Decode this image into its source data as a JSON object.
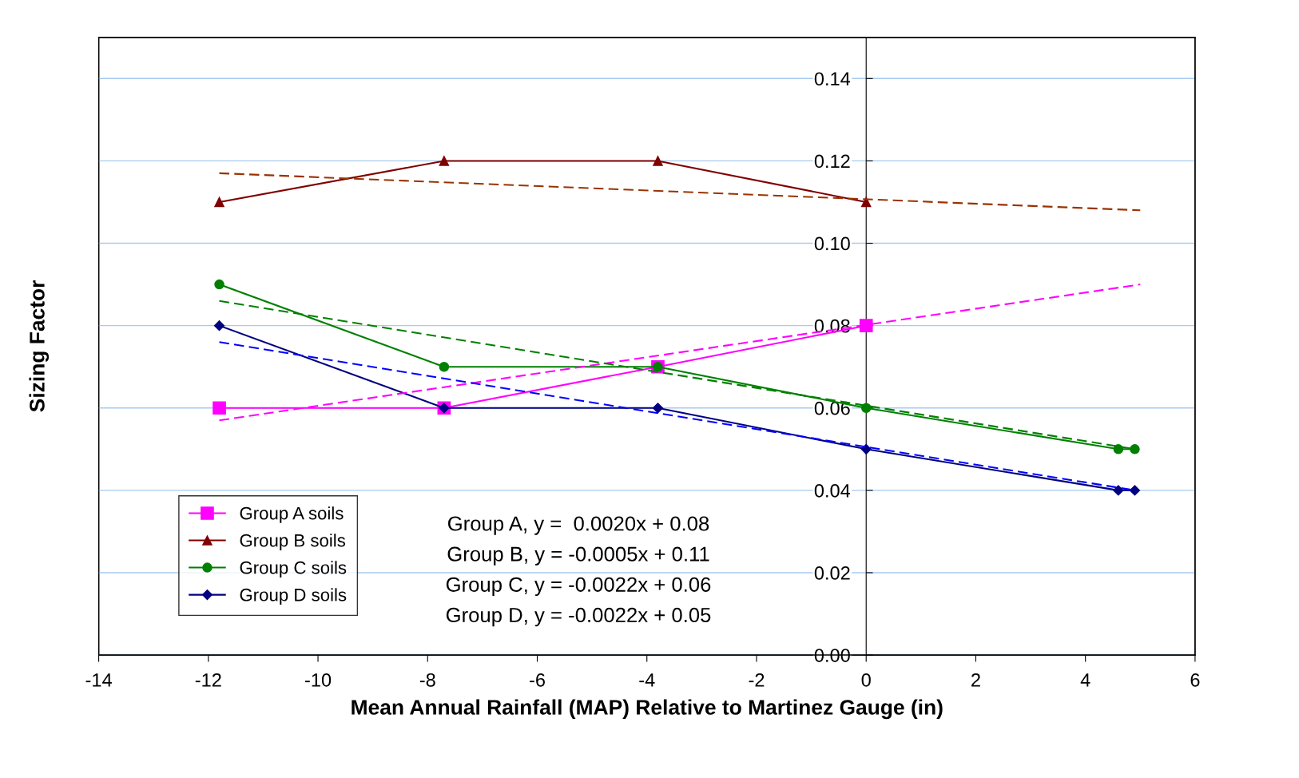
{
  "chart_data": {
    "type": "line",
    "xlabel": "Mean Annual Rainfall (MAP) Relative to Martinez Gauge (in)",
    "ylabel": "Sizing Factor",
    "xlim": [
      -14,
      6
    ],
    "xticks": [
      -14,
      -12,
      -10,
      -8,
      -6,
      -4,
      -2,
      0,
      2,
      4,
      6
    ],
    "ylim": [
      0,
      0.15
    ],
    "yticks": [
      {
        "value": 0,
        "label": "0.00"
      },
      {
        "value": 0.02,
        "label": "0.02"
      },
      {
        "value": 0.04,
        "label": "0.04"
      },
      {
        "value": 0.06,
        "label": "0.06"
      },
      {
        "value": 0.08,
        "label": "0.08"
      },
      {
        "value": 0.1,
        "label": "0.10"
      },
      {
        "value": 0.12,
        "label": "0.12"
      },
      {
        "value": 0.14,
        "label": "0.14"
      }
    ],
    "grid": "y",
    "legend": "bottom left",
    "series": [
      {
        "name": "Group A soils",
        "color": "#ff00ff",
        "marker": "square",
        "line_style": "solid",
        "x": [
          -11.8,
          -7.7,
          -3.8,
          0
        ],
        "values": [
          0.06,
          0.06,
          0.07,
          0.08
        ]
      },
      {
        "name": "Group B soils",
        "color": "#800000",
        "marker": "triangle",
        "line_style": "solid",
        "x": [
          -11.8,
          -7.7,
          -3.8,
          0
        ],
        "values": [
          0.11,
          0.12,
          0.12,
          0.11
        ]
      },
      {
        "name": "Group C soils",
        "color": "#008000",
        "marker": "circle",
        "line_style": "solid",
        "x": [
          -11.8,
          -7.7,
          -3.8,
          0,
          4.6,
          4.9
        ],
        "values": [
          0.09,
          0.07,
          0.07,
          0.06,
          0.05,
          0.05
        ]
      },
      {
        "name": "Group D soils",
        "color": "#000080",
        "marker": "diamond",
        "line_style": "solid",
        "x": [
          -11.8,
          -7.7,
          -3.8,
          0,
          4.6,
          4.9
        ],
        "values": [
          0.08,
          0.06,
          0.06,
          0.05,
          0.04,
          0.04
        ]
      },
      {
        "color": "#ff00ff",
        "marker": "none",
        "line_style": "dashed",
        "x": [
          -11.8,
          5
        ],
        "values": [
          0.057,
          0.09
        ]
      },
      {
        "color": "#993300",
        "marker": "none",
        "line_style": "dashed",
        "x": [
          -11.8,
          5
        ],
        "values": [
          0.117,
          0.108
        ]
      },
      {
        "color": "#008000",
        "marker": "none",
        "line_style": "dashed",
        "x": [
          -11.8,
          4.9
        ],
        "values": [
          0.086,
          0.05
        ]
      },
      {
        "color": "#0000ff",
        "marker": "none",
        "line_style": "dashed",
        "x": [
          -11.8,
          4.9
        ],
        "values": [
          0.076,
          0.04
        ]
      }
    ],
    "annotations": [
      "Group A, y =  0.0020x + 0.08",
      "Group B, y = -0.0005x + 0.11",
      "Group C, y = -0.0022x + 0.06",
      "Group D, y = -0.0022x + 0.05"
    ]
  }
}
